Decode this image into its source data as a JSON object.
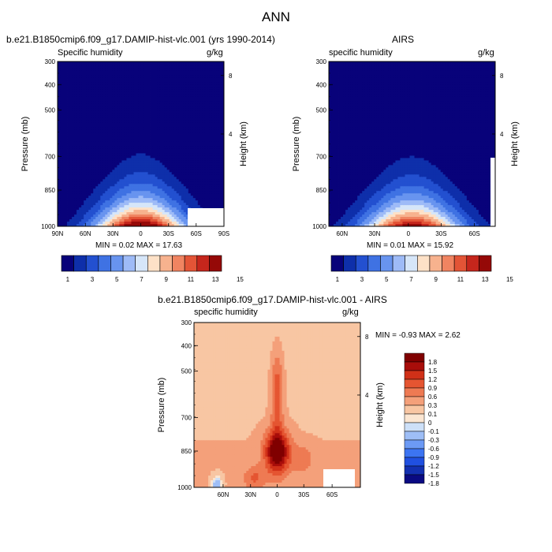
{
  "figure": {
    "title": "ANN"
  },
  "panels": {
    "model": {
      "title": "b.e21.B1850cmip6.f09_g17.DAMIP-hist-vlc.001 (yrs 1990-2014)",
      "left_label": "Specific humidity",
      "right_label": "g/kg",
      "stats": "MIN =  0.02  MAX =  17.63"
    },
    "obs": {
      "title": "AIRS",
      "left_label": "specific humidity",
      "right_label": "g/kg",
      "stats": "MIN =  0.01  MAX =  15.92"
    },
    "diff": {
      "title": "b.e21.B1850cmip6.f09_g17.DAMIP-hist-vlc.001 - AIRS",
      "left_label": "specific humidity",
      "right_label": "g/kg",
      "stats": "MIN =  -0.93  MAX =   2.62"
    }
  },
  "colors": {
    "cmap12": [
      "#08027a",
      "#0e2faa",
      "#2350d0",
      "#3f72e3",
      "#6894ef",
      "#9ebbf7",
      "#d6e6f9",
      "#fde1c7",
      "#f7b28e",
      "#f08461",
      "#e35436",
      "#c5261c",
      "#950907"
    ],
    "cmap_diff": [
      "#0a0a82",
      "#1330b0",
      "#2050e0",
      "#3c74f2",
      "#6c9af5",
      "#9ebef6",
      "#cde0f8",
      "#fbe6d2",
      "#f8c6a3",
      "#f4a07a",
      "#ee7a53",
      "#e55531",
      "#d03018",
      "#a80d0a",
      "#800000"
    ]
  },
  "chart_data": [
    {
      "type": "contour",
      "panel": "model",
      "title": "b.e21.B1850cmip6.f09_g17.DAMIP-hist-vlc.001 (yrs 1990-2014)",
      "variable": "Specific humidity",
      "units": "g/kg",
      "xlabel": "",
      "ylabel": "Pressure (mb)",
      "y2label": "Height (km)",
      "x_ticks": [
        "90N",
        "60N",
        "30N",
        "0",
        "30S",
        "60S",
        "90S"
      ],
      "y_ticks": [
        "300",
        "400",
        "500",
        "700",
        "850",
        "1000"
      ],
      "y2_ticks": [
        "8",
        "4"
      ],
      "colorbar_labels": [
        "1",
        "3",
        "5",
        "7",
        "9",
        "11",
        "13",
        "15"
      ],
      "levels": [
        1,
        2,
        3,
        4,
        5,
        6,
        7,
        8,
        9,
        10,
        11,
        12,
        13,
        14,
        15
      ],
      "ylim": [
        1000,
        300
      ],
      "xlim": [
        90,
        -90
      ],
      "min": 0.02,
      "max": 17.63
    },
    {
      "type": "contour",
      "panel": "obs",
      "title": "AIRS",
      "variable": "specific humidity",
      "units": "g/kg",
      "xlabel": "",
      "ylabel": "Pressure (mb)",
      "y2label": "Height (km)",
      "x_ticks": [
        "60N",
        "30N",
        "0",
        "30S",
        "60S"
      ],
      "y_ticks": [
        "300",
        "400",
        "500",
        "700",
        "850",
        "1000"
      ],
      "y2_ticks": [
        "8",
        "4"
      ],
      "colorbar_labels": [
        "1",
        "3",
        "5",
        "7",
        "9",
        "11",
        "13",
        "15"
      ],
      "levels": [
        1,
        2,
        3,
        4,
        5,
        6,
        7,
        8,
        9,
        10,
        11,
        12,
        13,
        14,
        15
      ],
      "ylim": [
        1000,
        300
      ],
      "min": 0.01,
      "max": 15.92
    },
    {
      "type": "contour",
      "panel": "diff",
      "title": "b.e21.B1850cmip6.f09_g17.DAMIP-hist-vlc.001 - AIRS",
      "variable": "specific humidity",
      "units": "g/kg",
      "xlabel": "",
      "ylabel": "Pressure (mb)",
      "y2label": "Height (km)",
      "x_ticks": [
        "60N",
        "30N",
        "0",
        "30S",
        "60S"
      ],
      "y_ticks": [
        "300",
        "400",
        "500",
        "700",
        "850",
        "1000"
      ],
      "y2_ticks": [
        "8",
        "4"
      ],
      "colorbar_labels": [
        "1.8",
        "1.5",
        "1.2",
        "0.9",
        "0.6",
        "0.3",
        "0.1",
        "0",
        "-0.1",
        "-0.3",
        "-0.6",
        "-0.9",
        "-1.2",
        "-1.5",
        "-1.8"
      ],
      "ylim": [
        1000,
        300
      ],
      "min": -0.93,
      "max": 2.62
    }
  ]
}
